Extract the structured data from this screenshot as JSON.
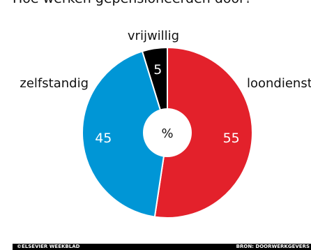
{
  "title": "Hoe werken gepensioneerden door?",
  "chart_data": {
    "type": "pie",
    "center_label": "%",
    "slices": [
      {
        "label": "loondienst",
        "value": 55,
        "color": "#e3212b"
      },
      {
        "label": "zelfstandig",
        "value": 45,
        "color": "#0096d6"
      },
      {
        "label": "vrijwillig",
        "value": 5,
        "color": "#000000"
      }
    ]
  },
  "footer": {
    "left": "©ELSEVIER WEEKBLAD",
    "right": "BRON: DOORWERKGEVERS"
  }
}
